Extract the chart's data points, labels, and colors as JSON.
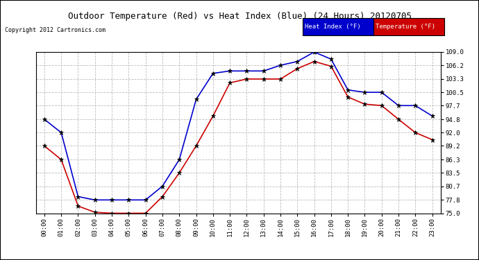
{
  "title": "Outdoor Temperature (Red) vs Heat Index (Blue) (24 Hours) 20120705",
  "copyright": "Copyright 2012 Cartronics.com",
  "x_labels": [
    "00:00",
    "01:00",
    "02:00",
    "03:00",
    "04:00",
    "05:00",
    "06:00",
    "07:00",
    "08:00",
    "09:00",
    "10:00",
    "11:00",
    "12:00",
    "13:00",
    "14:00",
    "15:00",
    "16:00",
    "17:00",
    "18:00",
    "19:00",
    "20:00",
    "21:00",
    "22:00",
    "23:00"
  ],
  "y_ticks": [
    75.0,
    77.8,
    80.7,
    83.5,
    86.3,
    89.2,
    92.0,
    94.8,
    97.7,
    100.5,
    103.3,
    106.2,
    109.0
  ],
  "y_tick_labels": [
    "75.0",
    "77.8",
    "80.7",
    "83.5",
    "86.3",
    "89.2",
    "92.0",
    "94.8",
    "97.7",
    "100.5",
    "103.3",
    "106.2",
    "109.0"
  ],
  "ylim": [
    75.0,
    109.0
  ],
  "temperature": [
    89.2,
    86.3,
    76.5,
    75.2,
    75.0,
    75.0,
    75.0,
    78.5,
    83.5,
    89.2,
    95.5,
    102.5,
    103.3,
    103.3,
    103.3,
    105.5,
    107.0,
    106.0,
    99.5,
    98.0,
    97.7,
    94.8,
    92.0,
    90.5
  ],
  "heat_index": [
    94.8,
    92.0,
    78.5,
    77.8,
    77.8,
    77.8,
    77.8,
    80.7,
    86.3,
    99.0,
    104.5,
    105.0,
    105.0,
    105.0,
    106.2,
    107.0,
    109.0,
    107.5,
    101.0,
    100.5,
    100.5,
    97.7,
    97.7,
    95.5
  ],
  "temp_color": "#cc0000",
  "heat_color": "#0000cc",
  "bg_color": "#ffffff",
  "grid_color": "#bbbbbb",
  "title_color": "#000000",
  "legend_heat_bg": "#0000cc",
  "legend_temp_bg": "#cc0000",
  "legend_text_color": "#ffffff",
  "border_color": "#000000"
}
